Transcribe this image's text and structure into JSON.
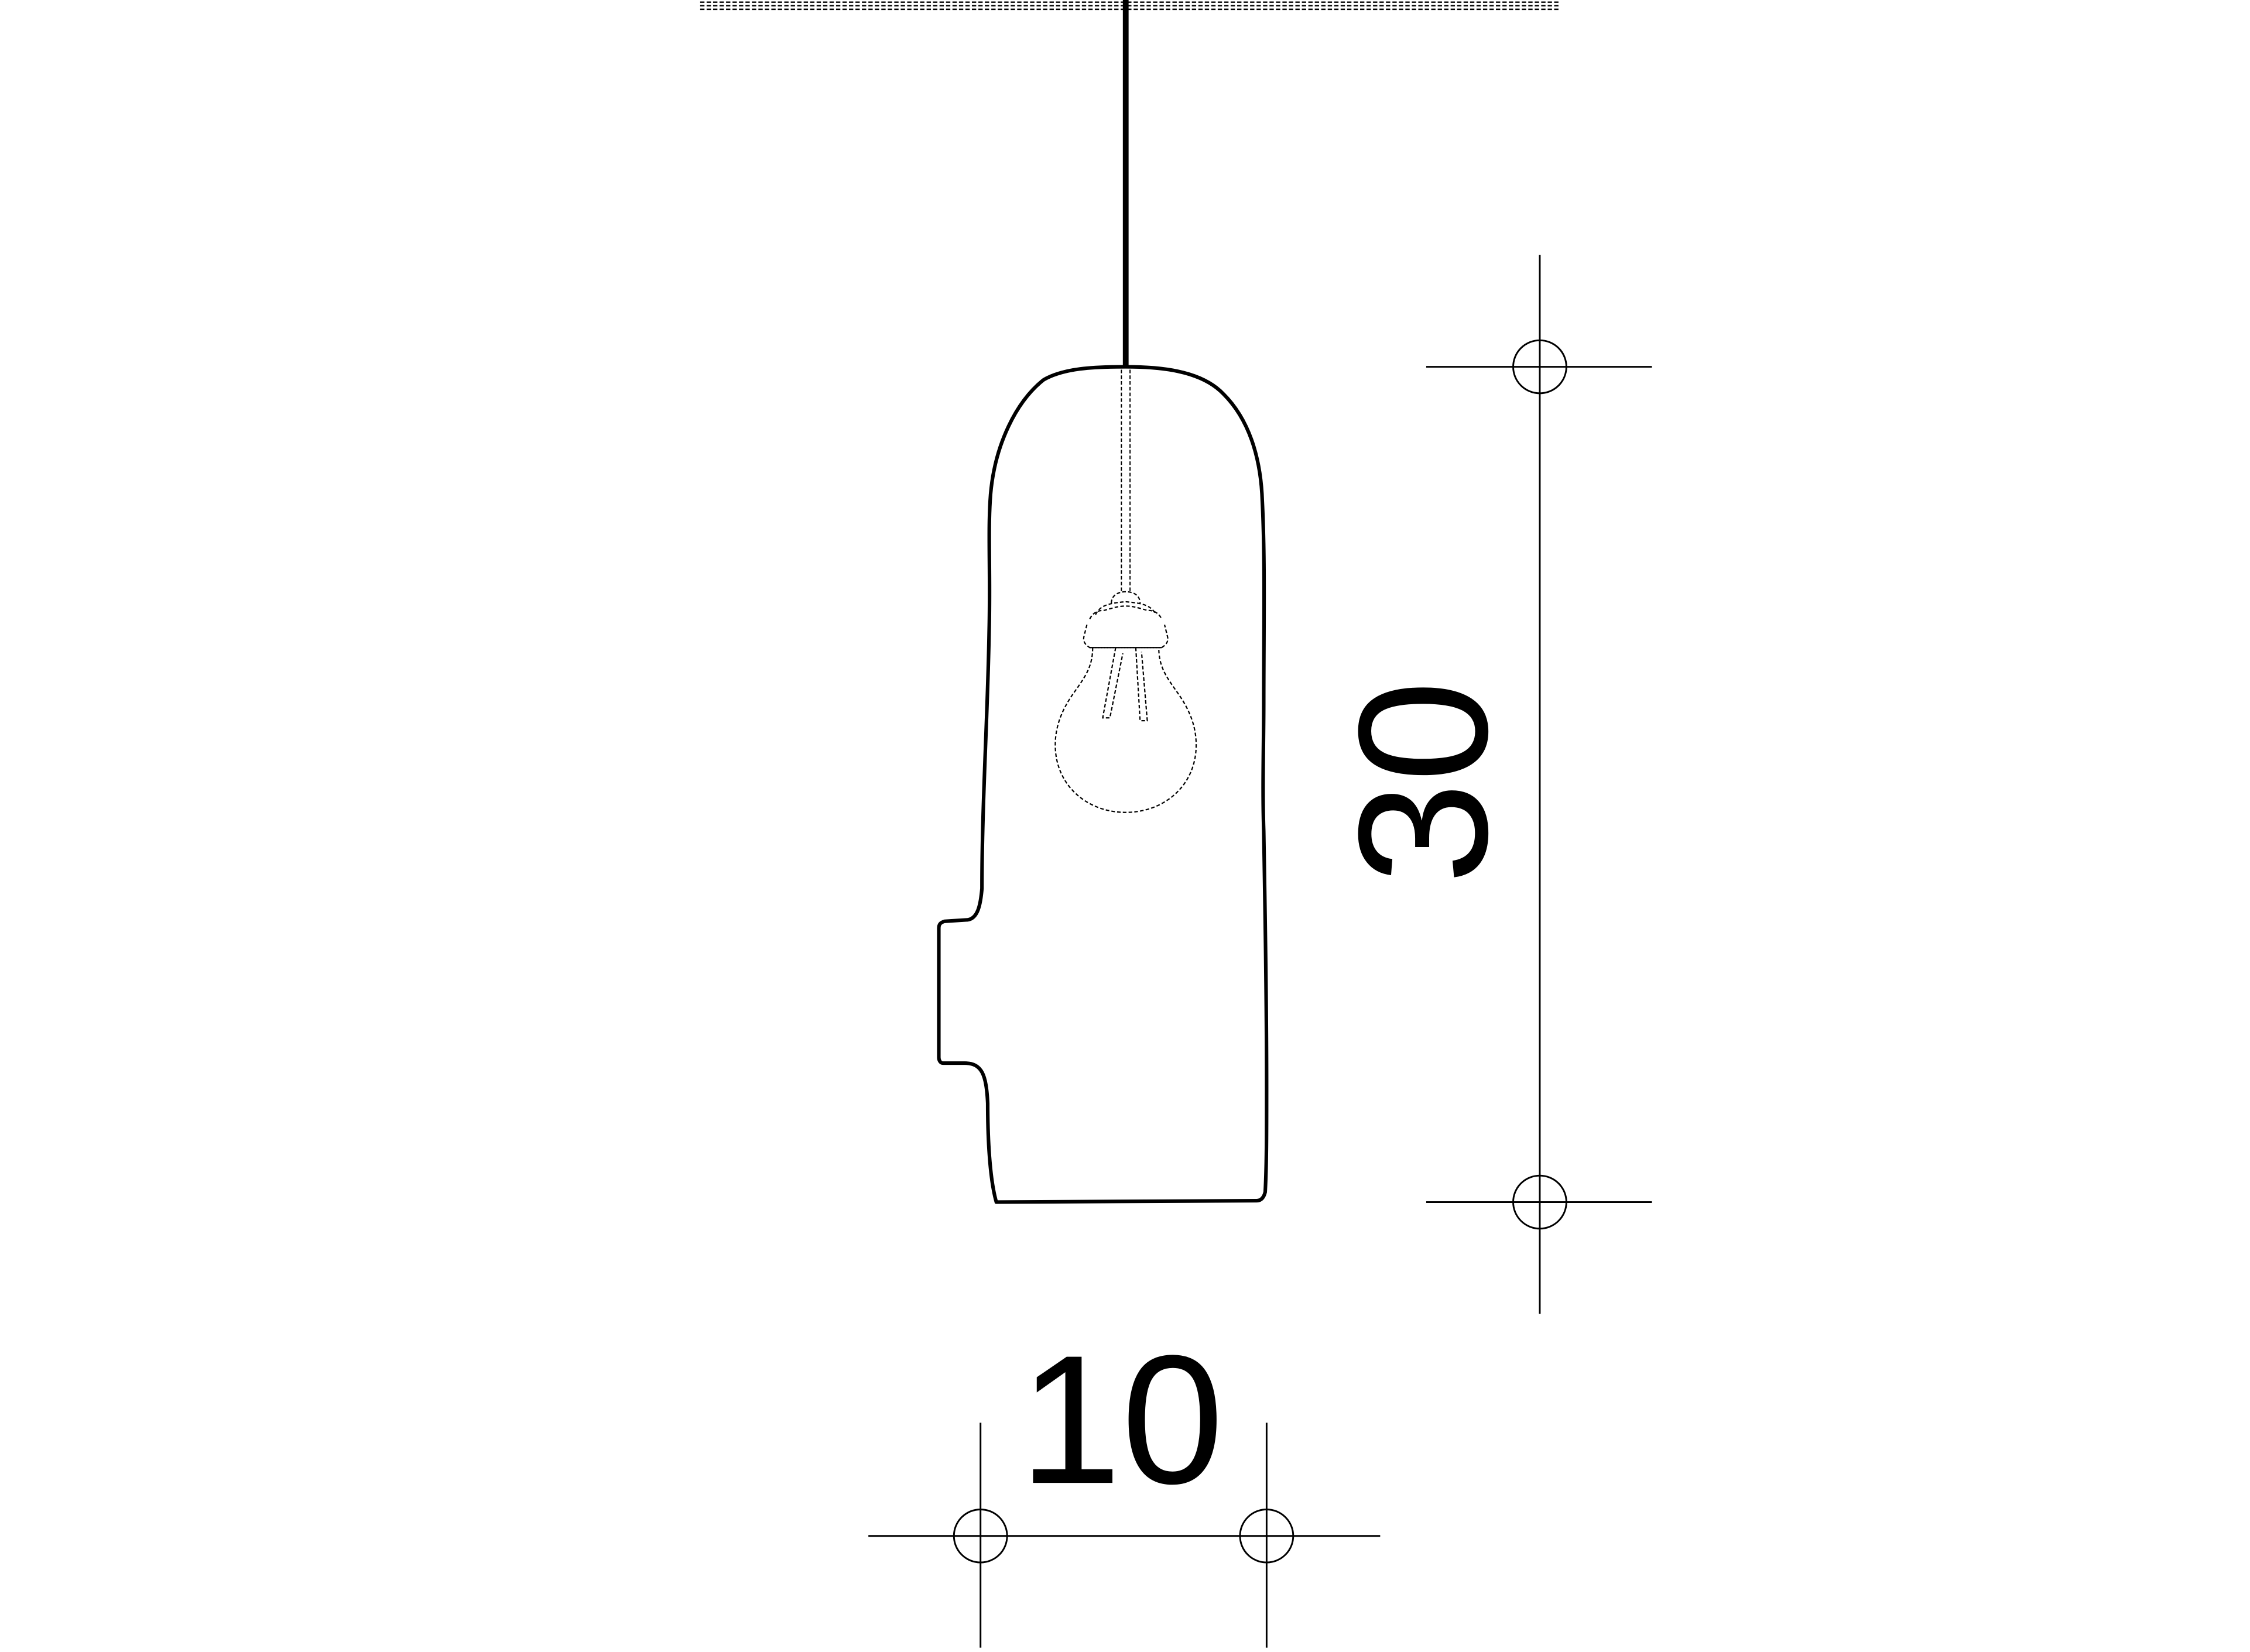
{
  "drawing": {
    "subject": "pendant-lamp-elevation",
    "line_color": "#000000",
    "background_color": "#ffffff"
  },
  "dimensions": {
    "height_label": "30",
    "width_label": "10"
  }
}
